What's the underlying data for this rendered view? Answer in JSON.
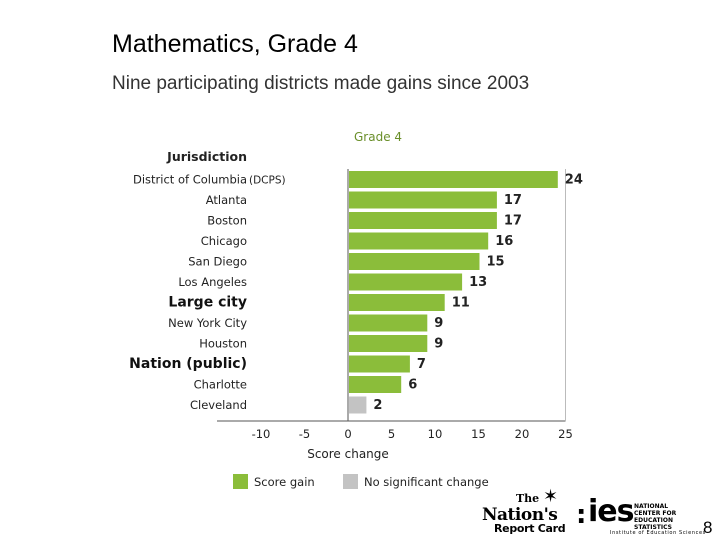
{
  "title": "Mathematics, Grade 4",
  "subtitle": "Nine participating districts made gains since 2003",
  "page_number": "8",
  "logos": {
    "nrc_the": "The",
    "nrc_main": "Nation's",
    "nrc_sub": "Report Card",
    "ies_text": "ies",
    "ies_nces": "NATIONAL CENTER FOR EDUCATION STATISTICS",
    "ies_institute": "Institute of Education Sciences"
  },
  "colors": {
    "gain": "#8bbd3a",
    "no_change": "#c3c3c3",
    "axis": "#555555"
  },
  "chart_data": {
    "type": "bar",
    "orientation": "horizontal",
    "title": "Grade 4",
    "category_header": "Jurisdiction",
    "xlabel": "Score change",
    "xlim": [
      -10,
      25
    ],
    "xticks": [
      "-10",
      "-5",
      "0",
      "5",
      "10",
      "15",
      "20",
      "25"
    ],
    "categories": [
      {
        "name": "District of Columbia",
        "suffix": "(DCPS)",
        "value": 24,
        "significant": true,
        "bold": false
      },
      {
        "name": "Atlanta",
        "value": 17,
        "significant": true,
        "bold": false
      },
      {
        "name": "Boston",
        "value": 17,
        "significant": true,
        "bold": false
      },
      {
        "name": "Chicago",
        "value": 16,
        "significant": true,
        "bold": false
      },
      {
        "name": "San Diego",
        "value": 15,
        "significant": true,
        "bold": false
      },
      {
        "name": "Los Angeles",
        "value": 13,
        "significant": true,
        "bold": false
      },
      {
        "name": "Large city",
        "value": 11,
        "significant": true,
        "bold": true
      },
      {
        "name": "New York City",
        "value": 9,
        "significant": true,
        "bold": false
      },
      {
        "name": "Houston",
        "value": 9,
        "significant": true,
        "bold": false
      },
      {
        "name": "Nation (public)",
        "value": 7,
        "significant": true,
        "bold": true
      },
      {
        "name": "Charlotte",
        "value": 6,
        "significant": true,
        "bold": false
      },
      {
        "name": "Cleveland",
        "value": 2,
        "significant": false,
        "bold": false
      }
    ],
    "legend": [
      {
        "label": "Score gain",
        "key": "gain"
      },
      {
        "label": "No significant change",
        "key": "no_change"
      }
    ],
    "legend_position": "bottom-left",
    "grid": false
  }
}
